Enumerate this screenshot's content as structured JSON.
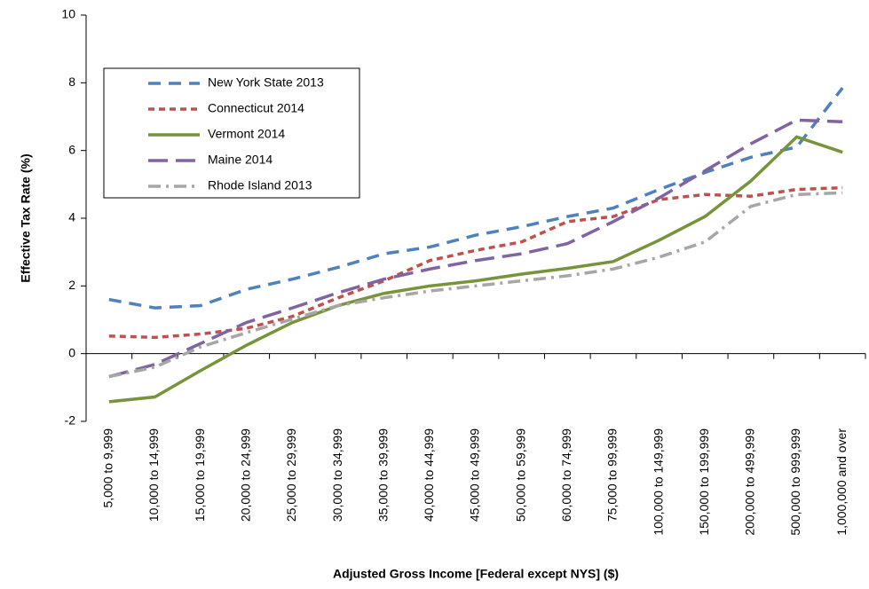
{
  "chart_data": {
    "type": "line",
    "x_label": "Adjusted Gross Income [Federal except NYS] ($)",
    "y_label": "Effective Tax Rate (%)",
    "categories": [
      "5,000 to 9,999",
      "10,000 to 14,999",
      "15,000 to 19,999",
      "20,000 to 24,999",
      "25,000 to 29,999",
      "30,000 to 34,999",
      "35,000 to 39,999",
      "40,000 to 44,999",
      "45,000 to 49,999",
      "50,000 to 59,999",
      "60,000 to 74,999",
      "75,000 to 99,999",
      "100,000 to 149,999",
      "150,000 to 199,999",
      "200,000 to 499,999",
      "500,000 to 999,999",
      "1,000,000 and over"
    ],
    "series": [
      {
        "name": "New York State 2013",
        "color": "#4f81bd",
        "values": [
          1.6,
          1.35,
          1.42,
          1.9,
          2.2,
          2.55,
          2.95,
          3.15,
          3.5,
          3.75,
          4.05,
          4.3,
          4.85,
          5.35,
          5.8,
          6.1,
          7.85
        ]
      },
      {
        "name": "Connecticut 2014",
        "color": "#c0504d",
        "values": [
          0.52,
          0.48,
          0.58,
          0.75,
          1.1,
          1.65,
          2.15,
          2.75,
          3.05,
          3.3,
          3.9,
          4.05,
          4.55,
          4.7,
          4.65,
          4.85,
          4.9
        ]
      },
      {
        "name": "Vermont 2014",
        "color": "#77933c",
        "values": [
          -1.42,
          -1.28,
          -0.5,
          0.25,
          0.92,
          1.42,
          1.78,
          2.0,
          2.15,
          2.35,
          2.52,
          2.72,
          3.35,
          4.05,
          5.1,
          6.4,
          5.95
        ]
      },
      {
        "name": "Maine 2014",
        "color": "#8064a2",
        "values": [
          -0.68,
          -0.32,
          0.3,
          0.92,
          1.35,
          1.8,
          2.2,
          2.5,
          2.75,
          2.95,
          3.25,
          3.9,
          4.6,
          5.4,
          6.2,
          6.9,
          6.85
        ]
      },
      {
        "name": "Rhode Island 2013",
        "color": "#a6a6a6",
        "values": [
          -0.68,
          -0.4,
          0.2,
          0.62,
          1.02,
          1.42,
          1.65,
          1.85,
          2.0,
          2.15,
          2.3,
          2.5,
          2.85,
          3.3,
          4.35,
          4.7,
          4.75
        ]
      }
    ],
    "ylim": [
      -2,
      10
    ],
    "yticks": [
      -2,
      0,
      2,
      4,
      6,
      8,
      10
    ],
    "legend": "upper left"
  }
}
